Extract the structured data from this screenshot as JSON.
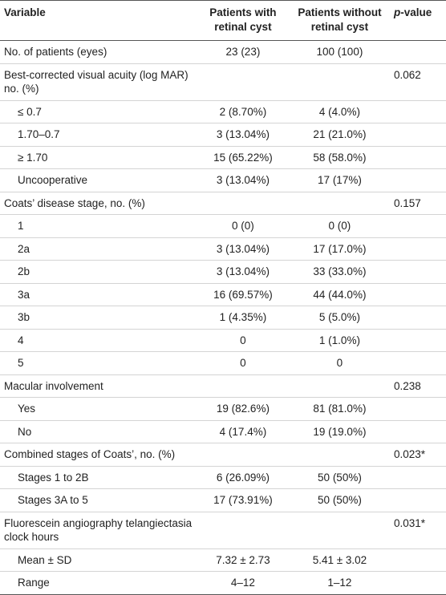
{
  "header": {
    "variable": "Variable",
    "with": "Patients with retinal cyst",
    "without": "Patients without retinal cyst",
    "p_value": "p-value"
  },
  "rows": [
    {
      "variable": "No. of patients (eyes)",
      "with": "23 (23)",
      "without": "100 (100)"
    },
    {
      "variable": "Best-corrected visual acuity (log MAR) no. (%)",
      "p_value": "0.062",
      "subrows": [
        {
          "variable": "≤ 0.7",
          "with": "2 (8.70%)",
          "without": "4 (4.0%)"
        },
        {
          "variable": "1.70–0.7",
          "with": "3 (13.04%)",
          "without": "21 (21.0%)"
        },
        {
          "variable": "≥ 1.70",
          "with": "15 (65.22%)",
          "without": "58 (58.0%)"
        },
        {
          "variable": "Uncooperative",
          "with": "3 (13.04%)",
          "without": "17 (17%)"
        }
      ]
    },
    {
      "variable": "Coats’ disease stage, no. (%)",
      "p_value": "0.157",
      "subrows": [
        {
          "variable": "1",
          "with": "0 (0)",
          "without": "0 (0)"
        },
        {
          "variable": "2a",
          "with": "3 (13.04%)",
          "without": "17 (17.0%)"
        },
        {
          "variable": "2b",
          "with": "3 (13.04%)",
          "without": "33 (33.0%)"
        },
        {
          "variable": "3a",
          "with": "16 (69.57%)",
          "without": "44 (44.0%)"
        },
        {
          "variable": "3b",
          "with": "1 (4.35%)",
          "without": "5 (5.0%)"
        },
        {
          "variable": "4",
          "with": "0",
          "without": "1 (1.0%)"
        },
        {
          "variable": "5",
          "with": "0",
          "without": "0"
        }
      ]
    },
    {
      "variable": "Macular involvement",
      "p_value": "0.238",
      "subrows": [
        {
          "variable": "Yes",
          "with": "19 (82.6%)",
          "without": "81 (81.0%)"
        },
        {
          "variable": "No",
          "with": "4 (17.4%)",
          "without": "19 (19.0%)"
        }
      ]
    },
    {
      "variable": "Combined stages of Coats’, no. (%)",
      "p_value": "0.023*",
      "subrows": [
        {
          "variable": "Stages 1 to 2B",
          "with": "6 (26.09%)",
          "without": "50 (50%)"
        },
        {
          "variable": "Stages 3A to 5",
          "with": "17 (73.91%)",
          "without": "50 (50%)"
        }
      ]
    },
    {
      "variable": "Fluorescein angiography telangiectasia clock hours",
      "p_value": "0.031*",
      "subrows": [
        {
          "variable": "Mean ± SD",
          "with": "7.32 ± 2.73",
          "without": "5.41 ± 3.02"
        },
        {
          "variable": "Range",
          "with": "4–12",
          "without": "1–12"
        }
      ]
    }
  ]
}
